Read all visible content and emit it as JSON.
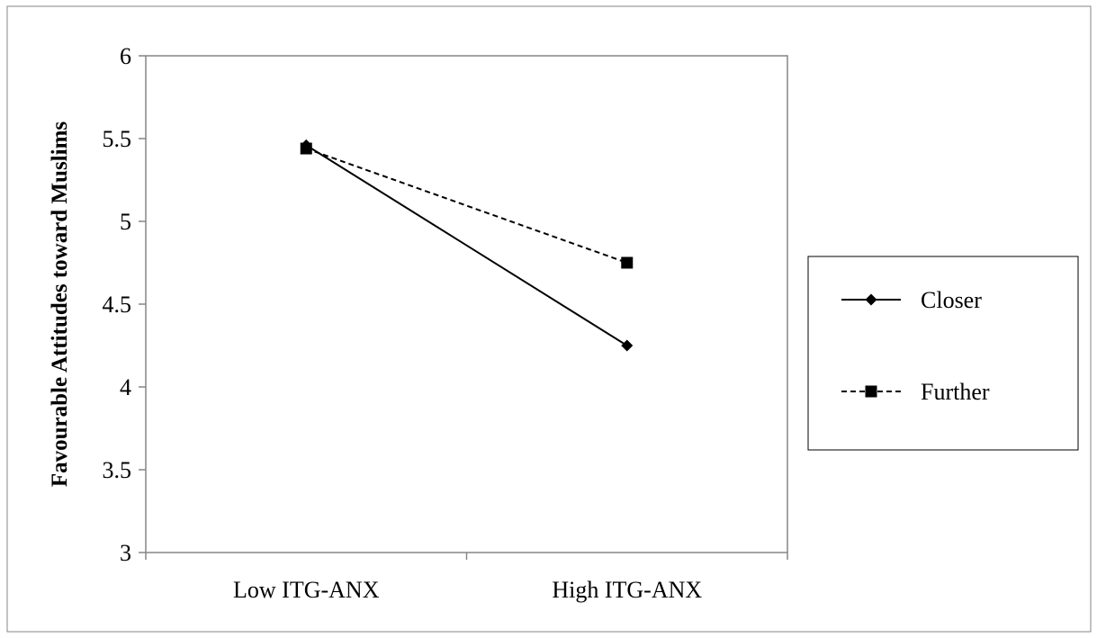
{
  "chart_data": {
    "type": "line",
    "categories": [
      "Low ITG-ANX",
      "High ITG-ANX"
    ],
    "series": [
      {
        "name": "Closer",
        "values": [
          5.46,
          4.25
        ],
        "line_style": "solid",
        "marker": "diamond"
      },
      {
        "name": "Further",
        "values": [
          5.44,
          4.75
        ],
        "line_style": "dashed",
        "marker": "square"
      }
    ],
    "ylabel": "Favourable Attitudes toward Muslims",
    "xlabel": "",
    "ylim": [
      3,
      6
    ],
    "yticks": [
      3,
      3.5,
      4,
      4.5,
      5,
      5.5,
      6
    ],
    "ytick_labels": [
      "3",
      "3.5",
      "4",
      "4.5",
      "5",
      "5.5",
      "6"
    ],
    "grid": false,
    "legend_position": "right",
    "colors": {
      "line": "#000000",
      "axis": "#868686",
      "frame": "#868686",
      "background": "#ffffff"
    }
  }
}
